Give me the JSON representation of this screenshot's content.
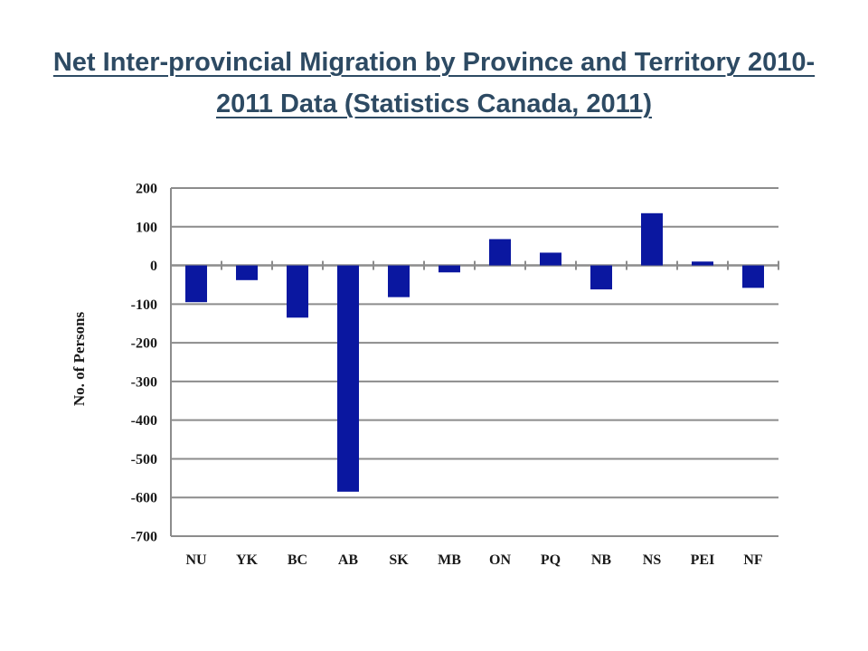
{
  "slide": {
    "title": "Net Inter-provincial Migration by Province and Territory 2010-2011 Data (Statistics Canada, 2011)"
  },
  "colors": {
    "title": "#2d4a63",
    "bar": "#0a17a0",
    "grid": "#8c8c8c"
  },
  "chart_data": {
    "type": "bar",
    "title": "",
    "xlabel": "",
    "ylabel": "No. of Persons",
    "categories": [
      "NU",
      "YK",
      "BC",
      "AB",
      "SK",
      "MB",
      "ON",
      "PQ",
      "NB",
      "NS",
      "PEI",
      "NF"
    ],
    "values": [
      -95,
      -38,
      -135,
      -585,
      -82,
      -18,
      68,
      33,
      -62,
      135,
      10,
      -58
    ],
    "ylim": [
      -700,
      200
    ],
    "yticks": [
      200,
      100,
      0,
      -100,
      -200,
      -300,
      -400,
      -500,
      -600,
      -700
    ],
    "grid": true,
    "legend": "none"
  }
}
